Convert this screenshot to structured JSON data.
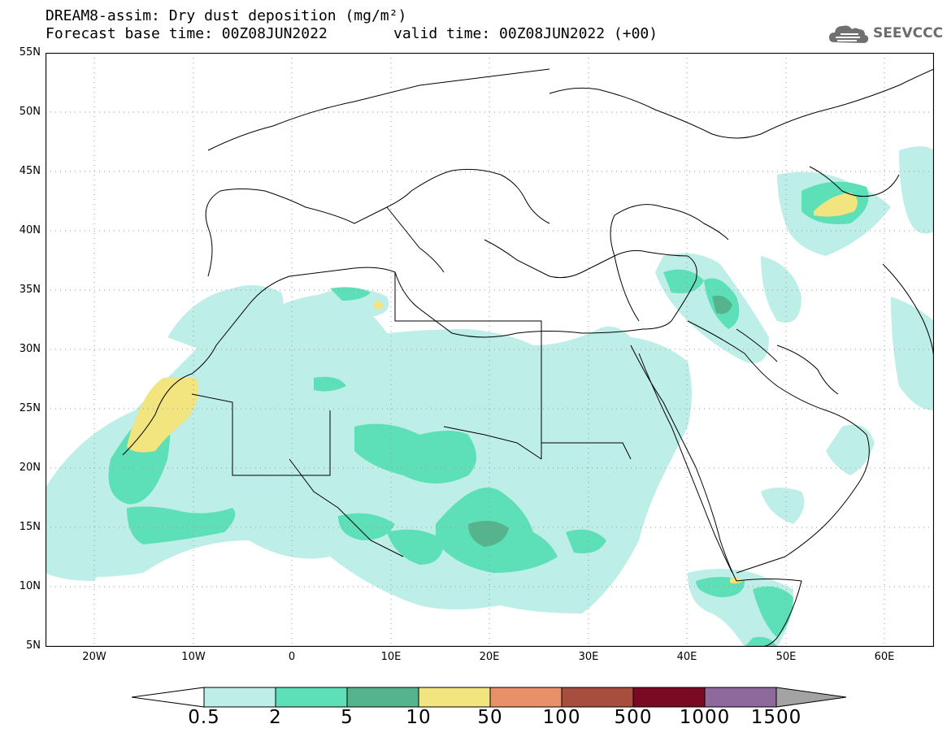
{
  "title": "DREAM8-assim: Dry dust deposition (mg/m²)",
  "base_time": "Forecast base time: 00Z08JUN2022",
  "valid_time": "valid time: 00Z08JUN2022 (+00)",
  "logo_text": "SEEVCCC",
  "logo_icon": "cloud-icon",
  "lat_labels": [
    "55N",
    "50N",
    "45N",
    "40N",
    "35N",
    "30N",
    "25N",
    "20N",
    "15N",
    "10N",
    "5N"
  ],
  "lon_labels": [
    "20W",
    "10W",
    "0",
    "10E",
    "20E",
    "30E",
    "40E",
    "50E",
    "60E"
  ],
  "legend": {
    "thresholds": [
      "0.5",
      "2",
      "5",
      "10",
      "50",
      "100",
      "500",
      "1000",
      "1500"
    ],
    "colors": [
      "#ffffff",
      "#bdeee8",
      "#5ddfb8",
      "#55b48c",
      "#f2e47e",
      "#e8906a",
      "#a84e3e",
      "#7a0a24",
      "#8e6a9c",
      "#a3a3a3"
    ]
  }
}
